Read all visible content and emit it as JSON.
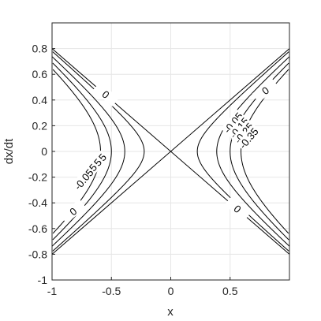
{
  "chart_data": {
    "type": "contour",
    "title": "",
    "xlabel": "x",
    "ylabel": "dx/dt",
    "xlim": [
      -1,
      1
    ],
    "ylim": [
      -1,
      1
    ],
    "grid": true,
    "x_ticks": [
      -1,
      -0.5,
      0,
      0.5
    ],
    "x_tick_labels": [
      "-1",
      "-0.5",
      "0",
      "0.5"
    ],
    "y_ticks": [
      -1,
      -0.8,
      -0.6,
      -0.4,
      -0.2,
      0,
      0.2,
      0.4,
      0.6,
      0.8
    ],
    "y_tick_labels": [
      "-1",
      "-0.8",
      "-0.6",
      "-0.4",
      "-0.2",
      "0",
      "0.2",
      "0.4",
      "0.6",
      "0.8"
    ],
    "levels": [
      0,
      -0.05,
      -0.15,
      -0.25,
      -0.35
    ],
    "level_labels": [
      "0",
      "-0.05",
      "-0.15",
      "-0.25",
      "-0.35"
    ],
    "separatrix_slope": 0.8
  }
}
